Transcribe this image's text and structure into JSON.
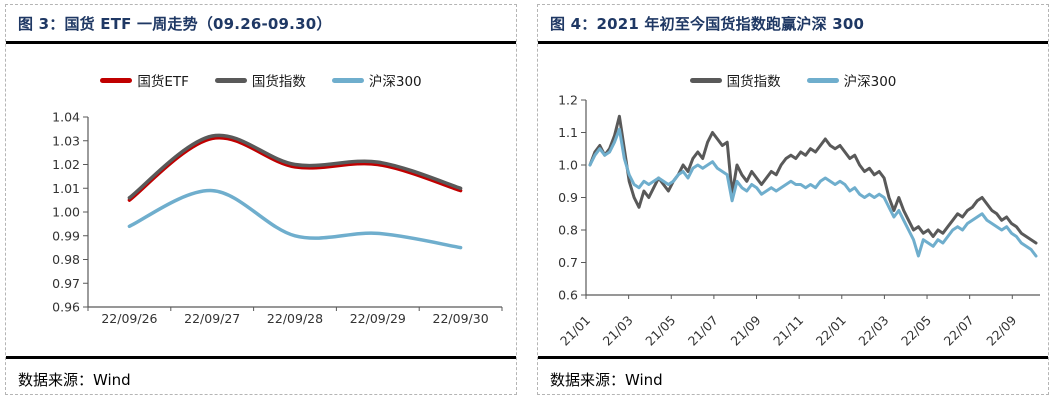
{
  "panels": [
    {
      "title": "图 3：国货 ETF 一周走势（09.26-09.30）",
      "source": "数据来源：Wind"
    },
    {
      "title": "图 4：2021 年初至今国货指数跑赢沪深 300",
      "source": "数据来源：Wind"
    }
  ],
  "colors": {
    "title": "#1F3864",
    "rule": "#000000",
    "axis": "#595959",
    "tick_text": "#333333",
    "legend_text": "#1A1A1A",
    "border": "#B5B5B5",
    "red": "#C00000",
    "gray": "#595959",
    "blue": "#6FAECD"
  },
  "chart_data": [
    {
      "type": "line",
      "title": "国货 ETF 一周走势（09.26-09.30）",
      "categories": [
        "22/09/26",
        "22/09/27",
        "22/09/28",
        "22/09/29",
        "22/09/30"
      ],
      "series": [
        {
          "name": "国货ETF",
          "color": "#C00000",
          "values": [
            1.005,
            1.031,
            1.019,
            1.02,
            1.009
          ]
        },
        {
          "name": "国货指数",
          "color": "#595959",
          "values": [
            1.006,
            1.032,
            1.02,
            1.021,
            1.01
          ]
        },
        {
          "name": "沪深300",
          "color": "#6FAECD",
          "values": [
            0.994,
            1.009,
            0.99,
            0.991,
            0.985
          ]
        }
      ],
      "ylim": [
        0.96,
        1.04
      ],
      "ytick_step": 0.01,
      "y_decimals": 2,
      "smooth": true,
      "line_width": 3.5,
      "legend_position": "top",
      "grid": false,
      "x_label_rotation": 0
    },
    {
      "type": "line",
      "title": "2021 年初至今国货指数跑赢沪深 300",
      "x_tick_labels": [
        "21/01",
        "21/03",
        "21/05",
        "21/07",
        "21/09",
        "21/11",
        "22/01",
        "22/03",
        "22/05",
        "22/07",
        "22/09"
      ],
      "months_span": 21.3,
      "tick_month_step": 2,
      "series": [
        {
          "name": "国货指数",
          "color": "#595959",
          "values": [
            1.0,
            1.04,
            1.06,
            1.03,
            1.05,
            1.09,
            1.15,
            1.05,
            0.95,
            0.9,
            0.87,
            0.92,
            0.9,
            0.93,
            0.96,
            0.94,
            0.92,
            0.95,
            0.97,
            1.0,
            0.98,
            1.02,
            1.04,
            1.02,
            1.07,
            1.1,
            1.08,
            1.06,
            1.07,
            0.91,
            1.0,
            0.97,
            0.95,
            0.98,
            0.96,
            0.94,
            0.96,
            0.98,
            0.97,
            1.0,
            1.02,
            1.03,
            1.02,
            1.04,
            1.03,
            1.05,
            1.04,
            1.06,
            1.08,
            1.06,
            1.05,
            1.06,
            1.04,
            1.02,
            1.03,
            1.0,
            0.98,
            0.99,
            0.97,
            0.98,
            0.96,
            0.9,
            0.86,
            0.9,
            0.86,
            0.83,
            0.8,
            0.81,
            0.79,
            0.8,
            0.78,
            0.8,
            0.79,
            0.81,
            0.83,
            0.85,
            0.84,
            0.86,
            0.87,
            0.89,
            0.9,
            0.88,
            0.86,
            0.85,
            0.83,
            0.84,
            0.82,
            0.81,
            0.79,
            0.78,
            0.77,
            0.76
          ]
        },
        {
          "name": "沪深300",
          "color": "#6FAECD",
          "values": [
            1.0,
            1.03,
            1.05,
            1.03,
            1.04,
            1.07,
            1.11,
            1.02,
            0.97,
            0.94,
            0.93,
            0.95,
            0.94,
            0.95,
            0.96,
            0.95,
            0.94,
            0.95,
            0.97,
            0.98,
            0.96,
            0.99,
            1.0,
            0.99,
            1.0,
            1.01,
            0.99,
            0.98,
            0.97,
            0.89,
            0.95,
            0.93,
            0.92,
            0.94,
            0.93,
            0.91,
            0.92,
            0.93,
            0.92,
            0.93,
            0.94,
            0.95,
            0.94,
            0.94,
            0.93,
            0.94,
            0.93,
            0.95,
            0.96,
            0.95,
            0.94,
            0.95,
            0.94,
            0.92,
            0.93,
            0.91,
            0.9,
            0.91,
            0.9,
            0.91,
            0.9,
            0.87,
            0.84,
            0.86,
            0.83,
            0.8,
            0.77,
            0.72,
            0.77,
            0.76,
            0.75,
            0.77,
            0.76,
            0.78,
            0.8,
            0.81,
            0.8,
            0.82,
            0.83,
            0.84,
            0.85,
            0.83,
            0.82,
            0.81,
            0.8,
            0.81,
            0.79,
            0.78,
            0.76,
            0.75,
            0.74,
            0.72
          ]
        }
      ],
      "ylim": [
        0.6,
        1.2
      ],
      "ytick_step": 0.1,
      "y_decimals": 1,
      "smooth": false,
      "line_width": 3,
      "legend_position": "top",
      "grid": false,
      "x_label_rotation": -45
    }
  ]
}
